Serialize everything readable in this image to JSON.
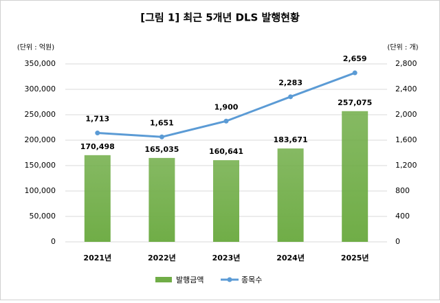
{
  "chart_data": {
    "type": "bar",
    "title": "[그림 1] 최근 5개년 DLS 발행현황",
    "y_unit": "(단위 : 억원)",
    "y2_unit": "(단위 : 개)",
    "categories": [
      "2021년",
      "2022년",
      "2023년",
      "2024년",
      "2025년"
    ],
    "series": [
      {
        "name": "발행금액",
        "type": "bar",
        "color": "#70ad47",
        "values": [
          170498,
          165035,
          160641,
          183671,
          257075
        ],
        "value_labels": [
          "170,498",
          "165,035",
          "160,641",
          "183,671",
          "257,075"
        ]
      },
      {
        "name": "종목수",
        "type": "line",
        "axis": "y2",
        "color": "#5b9bd5",
        "values": [
          1713,
          1651,
          1900,
          2283,
          2659
        ],
        "value_labels": [
          "1,713",
          "1,651",
          "1,900",
          "2,283",
          "2,659"
        ]
      }
    ],
    "ylim": [
      0,
      350000
    ],
    "yticks": [
      0,
      {
        "value": 50000,
        "label": "50,000"
      },
      {
        "value": 100000,
        "label": "100,000"
      },
      {
        "value": 150000,
        "label": "150,000"
      },
      {
        "value": 200000,
        "label": "200,000"
      },
      {
        "value": 250000,
        "label": "250,000"
      },
      {
        "value": 300000,
        "label": "300,000"
      },
      {
        "value": 350000,
        "label": "350,000"
      }
    ],
    "y2lim": [
      0,
      2800
    ],
    "y2ticks": [
      0,
      400,
      800,
      {
        "value": 1200,
        "label": "1,200"
      },
      {
        "value": 1600,
        "label": "1,600"
      },
      {
        "value": 2000,
        "label": "2,000"
      },
      {
        "value": 2400,
        "label": "2,400"
      },
      {
        "value": 2800,
        "label": "2,800"
      }
    ],
    "grid": true,
    "legend": "bottom"
  }
}
